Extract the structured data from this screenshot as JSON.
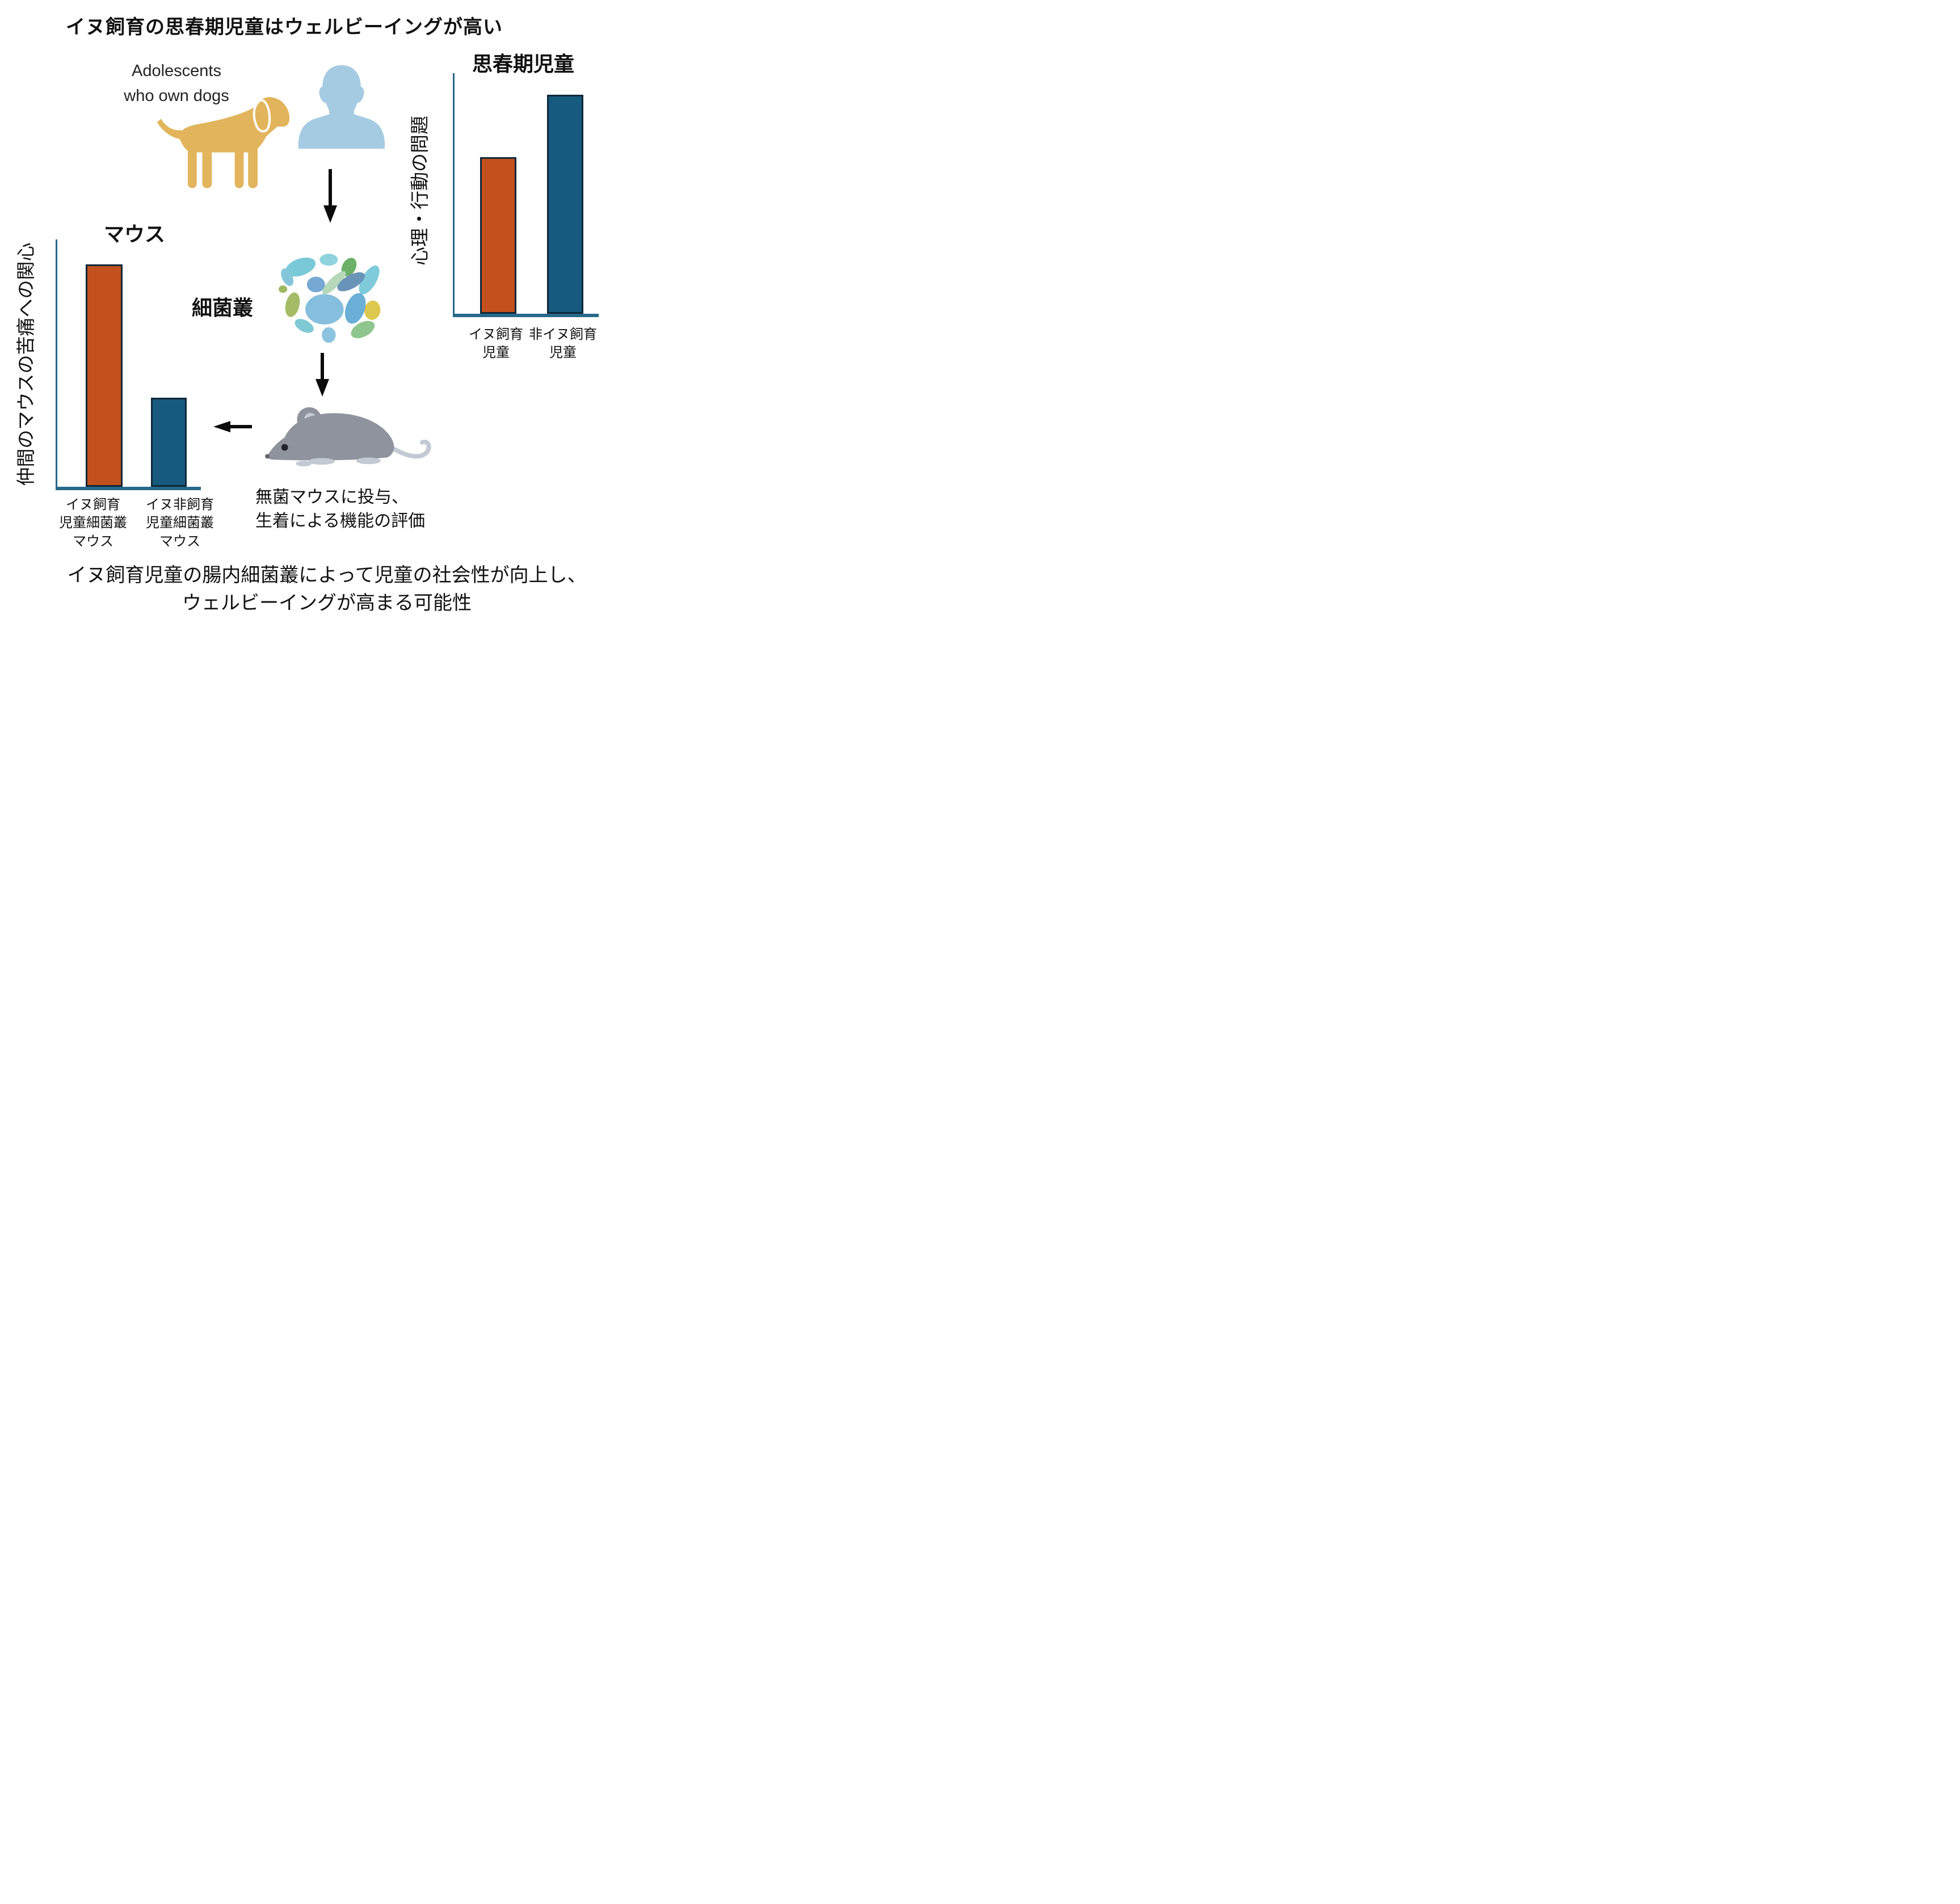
{
  "title": "イヌ飼育の思春期児童はウェルビーイングが高い",
  "flow": {
    "adolescents_line1": "Adolescents",
    "adolescents_line2": "who own dogs",
    "microbiome_label": "細菌叢",
    "mouse_note_line1": "無菌マウスに投与、",
    "mouse_note_line2": "生着による機能の評価"
  },
  "bottom_caption": {
    "line1": "イヌ飼育児童の腸内細菌叢によって児童の社会性が向上し、",
    "line2": "ウェルビーイングが高まる可能性"
  },
  "icons": [
    "dog-icon",
    "person-icon",
    "microbiome-icon",
    "mouse-icon",
    "arrow-down-icon",
    "arrow-left-icon"
  ],
  "colors": {
    "bar_orange": "#C2511D",
    "bar_teal": "#175A80",
    "bar_border": "#0F2838",
    "axis": "#26698A",
    "dog": "#E2B45C",
    "person": "#A5CBE2",
    "mouse_body": "#8E939D",
    "mouse_light": "#C2C9D3",
    "text": "#111111"
  },
  "chart_data": [
    {
      "id": "adolescents_chart",
      "type": "bar",
      "title": "思春期児童",
      "ylabel": "心理・行動の問題",
      "xlabel": "",
      "categories": [
        [
          "イヌ飼育",
          "児童"
        ],
        [
          "非イヌ飼育",
          "児童"
        ]
      ],
      "values_relative": [
        0.65,
        0.91
      ],
      "bar_colors": [
        "#C2511D",
        "#175A80"
      ],
      "ylim": [
        0,
        1
      ],
      "grid": false,
      "legend": "none",
      "note": "no numeric tick labels shown; bar heights read as fraction of y-axis"
    },
    {
      "id": "mice_chart",
      "type": "bar",
      "title": "マウス",
      "ylabel": "仲間のマウスの苦痛への関心",
      "xlabel": "",
      "categories": [
        [
          "イヌ飼育",
          "児童細菌叢",
          "マウス"
        ],
        [
          "イヌ非飼育",
          "児童細菌叢",
          "マウス"
        ]
      ],
      "values_relative": [
        0.9,
        0.36
      ],
      "bar_colors": [
        "#C2511D",
        "#175A80"
      ],
      "ylim": [
        0,
        1
      ],
      "grid": false,
      "legend": "none",
      "note": "no numeric tick labels shown; bar heights read as fraction of y-axis"
    }
  ]
}
